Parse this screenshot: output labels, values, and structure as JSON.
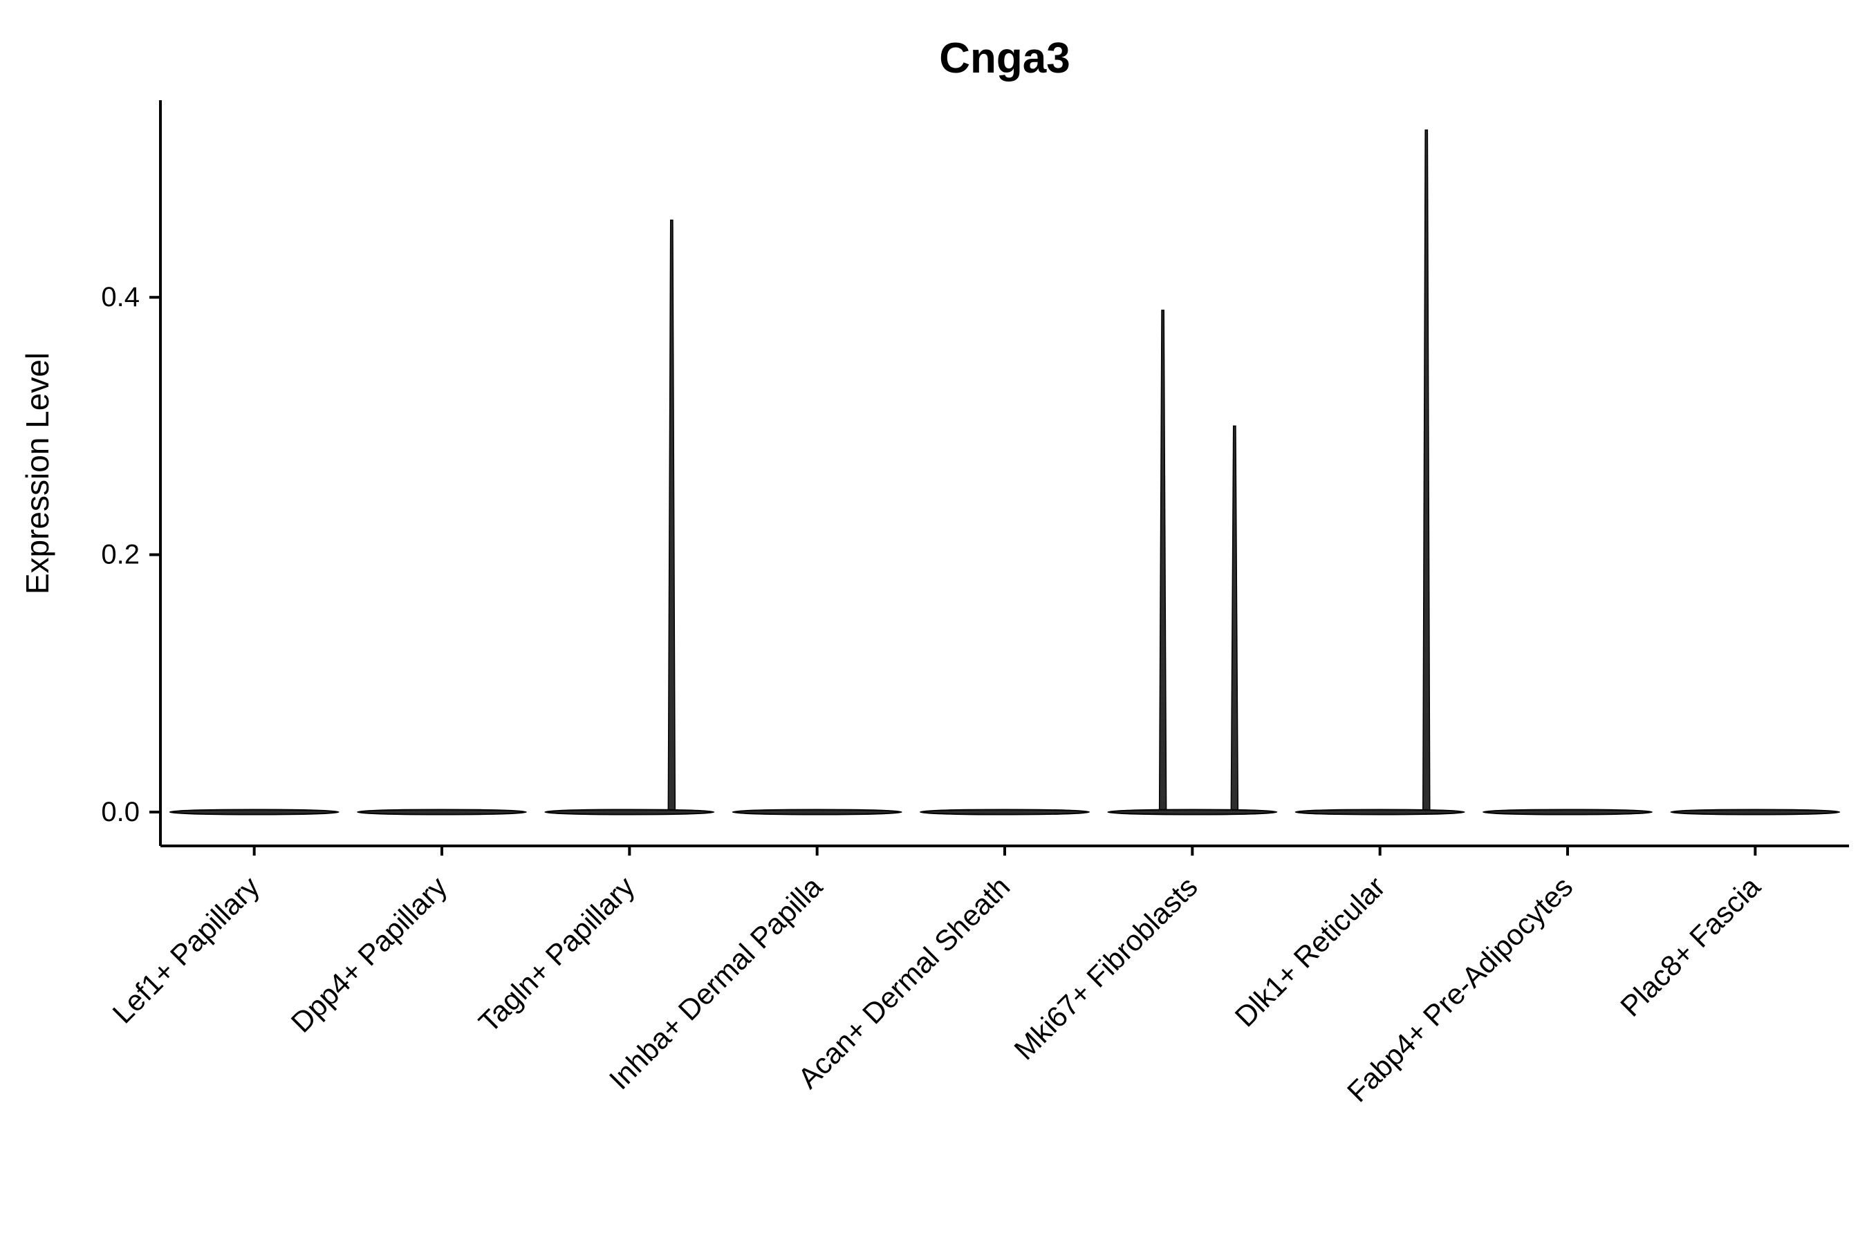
{
  "chart_data": {
    "type": "violin",
    "title": "Cnga3",
    "ylabel": "Expression Level",
    "xlabel": "",
    "grid": false,
    "legend": "none",
    "ylim": [
      -0.026,
      0.553
    ],
    "yticks": [
      0,
      0.2,
      0.4
    ],
    "ytick_labels": [
      "0.0",
      "0.2",
      "0.4"
    ],
    "categories": [
      "Lef1+ Papillary",
      "Dpp4+ Papillary",
      "Tagln+ Papillary",
      "Inhba+ Dermal Papilla",
      "Acan+ Dermal Sheath",
      "Mki67+ Fibroblasts",
      "Dlk1+ Reticular",
      "Fabp4+ Pre-Adipocytes",
      "Plac8+ Fascia"
    ],
    "series": [
      {
        "name": "Lef1+ Papillary",
        "baseline": 0.0,
        "max": 0.0,
        "spikes": []
      },
      {
        "name": "Dpp4+ Papillary",
        "baseline": 0.0,
        "max": 0.0,
        "spikes": []
      },
      {
        "name": "Tagln+ Papillary",
        "baseline": 0.0,
        "max": 0.46,
        "spikes": [
          {
            "value": 0.46,
            "offset_frac": 0.5
          }
        ]
      },
      {
        "name": "Inhba+ Dermal Papilla",
        "baseline": 0.0,
        "max": 0.0,
        "spikes": []
      },
      {
        "name": "Acan+ Dermal Sheath",
        "baseline": 0.0,
        "max": 0.0,
        "spikes": []
      },
      {
        "name": "Mki67+ Fibroblasts",
        "baseline": 0.0,
        "max": 0.39,
        "spikes": [
          {
            "value": 0.39,
            "offset_frac": -0.35
          },
          {
            "value": 0.3,
            "offset_frac": 0.5
          }
        ]
      },
      {
        "name": "Dlk1+ Reticular",
        "baseline": 0.0,
        "max": 0.53,
        "spikes": [
          {
            "value": 0.53,
            "offset_frac": 0.55
          }
        ]
      },
      {
        "name": "Fabp4+ Pre-Adipocytes",
        "baseline": 0.0,
        "max": 0.0,
        "spikes": []
      },
      {
        "name": "Plac8+ Fascia",
        "baseline": 0.0,
        "max": 0.0,
        "spikes": []
      }
    ],
    "colors": {
      "violin_fill": "#2e2e2e",
      "violin_stroke": "#000000",
      "axis": "#000000",
      "text": "#000000",
      "background": "#ffffff"
    }
  }
}
